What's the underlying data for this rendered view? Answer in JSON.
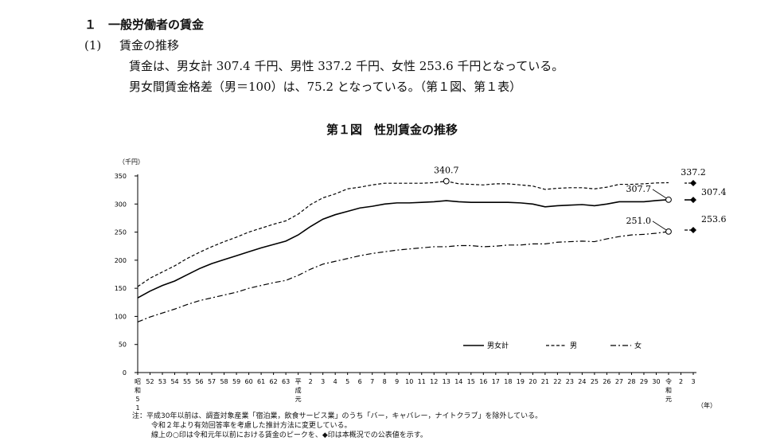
{
  "section": {
    "heading": "１　一般労働者の賃金",
    "subheading_num": "(1)",
    "subheading": "賃金の推移",
    "para1": "賃金は、男女計 307.4 千円、男性 337.2 千円、女性 253.6 千円となっている。",
    "para2": "男女間賃金格差（男＝100）は、75.2 となっている。（第１図、第１表）"
  },
  "chart_data": {
    "type": "line",
    "title": "第１図　性別賃金の推移",
    "yunit": "（千円）",
    "xunit": "（年）",
    "ylim": [
      0,
      350
    ],
    "yticks": [
      0,
      50,
      100,
      150,
      200,
      250,
      300,
      350
    ],
    "categories": [
      "昭和51",
      "52",
      "53",
      "54",
      "55",
      "56",
      "57",
      "58",
      "59",
      "60",
      "61",
      "62",
      "63",
      "平成元",
      "2",
      "3",
      "4",
      "5",
      "6",
      "7",
      "8",
      "9",
      "10",
      "11",
      "12",
      "13",
      "14",
      "15",
      "16",
      "17",
      "18",
      "19",
      "20",
      "21",
      "22",
      "23",
      "24",
      "25",
      "26",
      "27",
      "28",
      "29",
      "30",
      "令和元",
      "2",
      "3"
    ],
    "series": [
      {
        "name": "男女計",
        "style": "solid",
        "values": [
          133,
          145,
          155,
          163,
          174,
          185,
          194,
          201,
          208,
          215,
          222,
          228,
          234,
          245,
          260,
          273,
          281,
          287,
          293,
          296,
          300,
          302,
          302,
          303,
          304,
          306,
          304,
          303,
          303,
          303,
          303,
          302,
          300,
          295,
          297,
          298,
          299,
          297,
          300,
          304,
          304,
          304,
          306.2,
          307.7,
          null,
          307.4
        ]
      },
      {
        "name": "男",
        "style": "dashed",
        "values": [
          153,
          168,
          179,
          190,
          203,
          214,
          224,
          233,
          241,
          250,
          257,
          264,
          270,
          282,
          299,
          311,
          318,
          327,
          330,
          334,
          337,
          337,
          337,
          337,
          338,
          340.7,
          336,
          335,
          334,
          336,
          336,
          334,
          332,
          326,
          328,
          329,
          329,
          327,
          330,
          335,
          335,
          336,
          337.5,
          338.0,
          null,
          337.2
        ]
      },
      {
        "name": "女",
        "style": "dashdot",
        "values": [
          90,
          99,
          106,
          113,
          121,
          128,
          133,
          138,
          143,
          150,
          155,
          160,
          164,
          173,
          184,
          193,
          198,
          203,
          208,
          212,
          215,
          218,
          220,
          222,
          224,
          224,
          226,
          226,
          224,
          225,
          227,
          227,
          229,
          229,
          232,
          233,
          234,
          233,
          238,
          242,
          245,
          246,
          248,
          251.0,
          null,
          253.6
        ]
      }
    ],
    "annotations": [
      {
        "text": "340.7",
        "series": "男",
        "category": "13",
        "kind": "peak"
      },
      {
        "text": "337.2",
        "series": "男",
        "category": "3",
        "kind": "published"
      },
      {
        "text": "307.7",
        "series": "男女計",
        "category": "令和元",
        "kind": "peak"
      },
      {
        "text": "307.4",
        "series": "男女計",
        "category": "3",
        "kind": "published"
      },
      {
        "text": "251.0",
        "series": "女",
        "category": "令和元",
        "kind": "peak"
      },
      {
        "text": "253.6",
        "series": "女",
        "category": "3",
        "kind": "published"
      }
    ],
    "legend_position": "bottom-right"
  },
  "notes": {
    "line1": "注：平成30年以前は、調査対象産業「宿泊業，飲食サービス業」のうち「バー，キャバレー，ナイトクラブ」を除外している。",
    "line2": "令和２年より有効回答率を考慮した推計方法に変更している。",
    "line3": "線上の○印は令和元年以前における賃金のピークを、◆印は本概況での公表値を示す。"
  }
}
